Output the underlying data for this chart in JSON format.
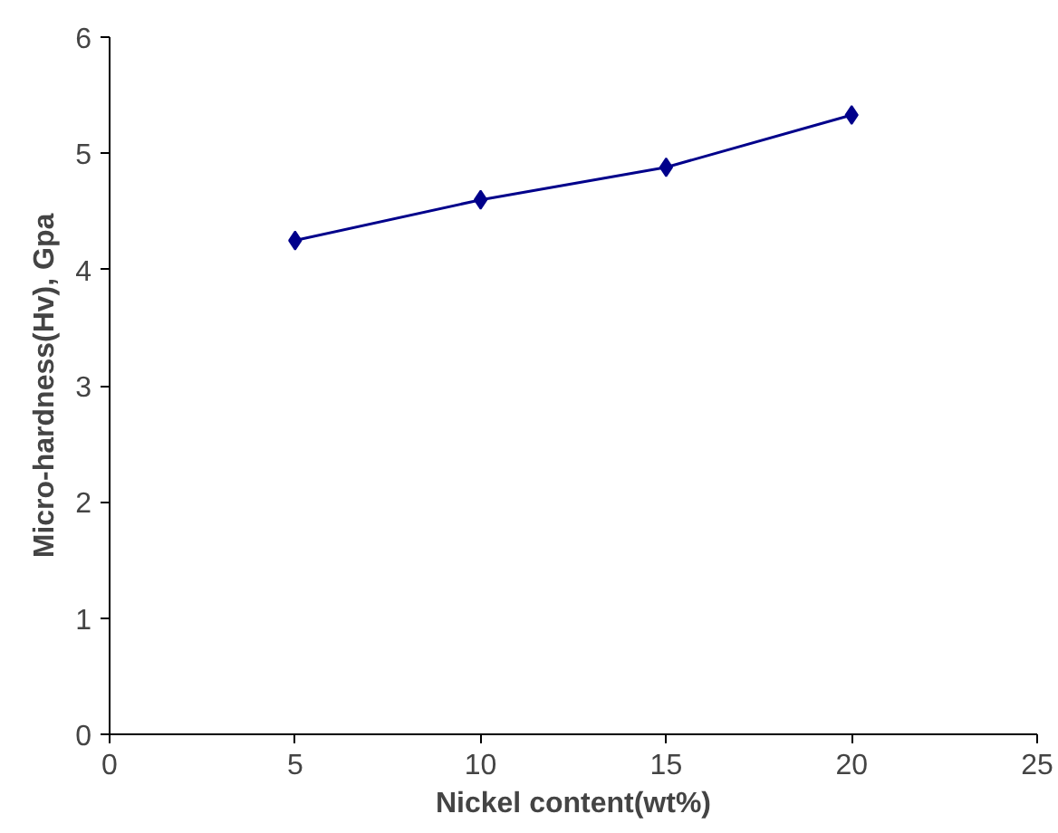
{
  "chart_data": {
    "type": "line",
    "xlabel": "Nickel content(wt%)",
    "ylabel": "Micro-hardness(Hv), Gpa",
    "x": [
      5,
      10,
      15,
      20
    ],
    "series": [
      {
        "color": "#00008b",
        "values": [
          4.25,
          4.6,
          4.88,
          5.33
        ]
      }
    ],
    "xlim": [
      0,
      25
    ],
    "xticks": [
      0,
      5,
      10,
      15,
      20,
      25
    ],
    "ylim": [
      0,
      6
    ],
    "yticks": [
      0,
      1,
      2,
      3,
      4,
      5,
      6
    ],
    "grid": false,
    "marker": "diamond",
    "line_style": "solid"
  }
}
